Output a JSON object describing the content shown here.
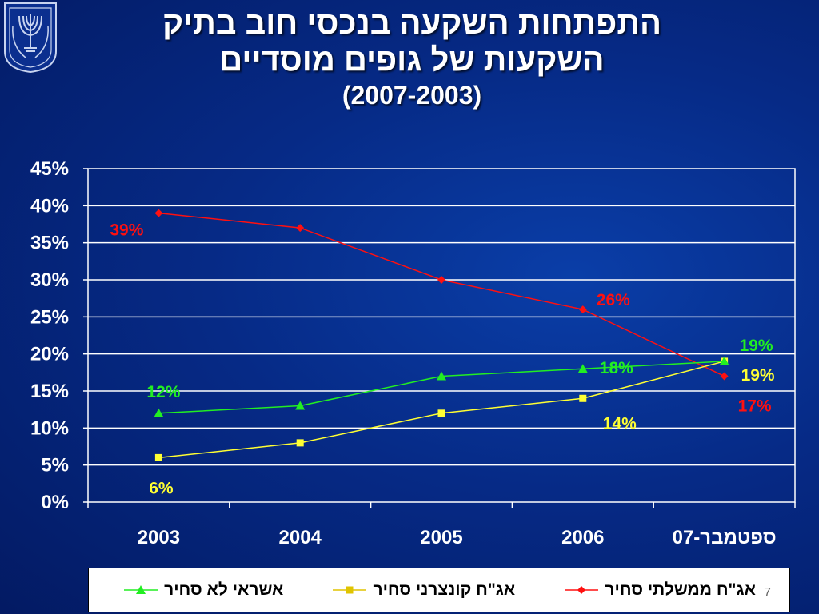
{
  "slide": {
    "title_line1": "התפתחות השקעה בנכסי חוב בתיק",
    "title_line2": "השקעות של גופים מוסדיים",
    "title_line3": "(2007-2003)",
    "page_number": "7"
  },
  "chart_data": {
    "type": "line",
    "categories": [
      "2003",
      "2004",
      "2005",
      "2006",
      "ספטמבר-07"
    ],
    "ylim": [
      0,
      0.45
    ],
    "yticks": [
      0,
      0.05,
      0.1,
      0.15,
      0.2,
      0.25,
      0.3,
      0.35,
      0.4,
      0.45
    ],
    "ytick_labels": [
      "0%",
      "5%",
      "10%",
      "15%",
      "20%",
      "25%",
      "30%",
      "35%",
      "40%",
      "45%"
    ],
    "grid": true,
    "legend_position": "bottom",
    "series": [
      {
        "name": "אג\"ח ממשלתי סחיר",
        "color": "#ff1010",
        "marker": "diamond",
        "values": [
          0.39,
          0.37,
          0.3,
          0.26,
          0.17
        ],
        "point_labels": [
          "39%",
          "",
          "",
          "26%",
          "17%"
        ]
      },
      {
        "name": "אג\"ח קונצרני סחיר",
        "color": "#ffff33",
        "marker": "square",
        "values": [
          0.06,
          0.08,
          0.12,
          0.14,
          0.19
        ],
        "point_labels": [
          "6%",
          "",
          "",
          "14%",
          "19%"
        ]
      },
      {
        "name": "אשראי לא סחיר",
        "color": "#22ee22",
        "marker": "triangle",
        "values": [
          0.12,
          0.13,
          0.17,
          0.18,
          0.19
        ],
        "point_labels": [
          "12%",
          "",
          "",
          "18%",
          "19%"
        ]
      }
    ]
  }
}
